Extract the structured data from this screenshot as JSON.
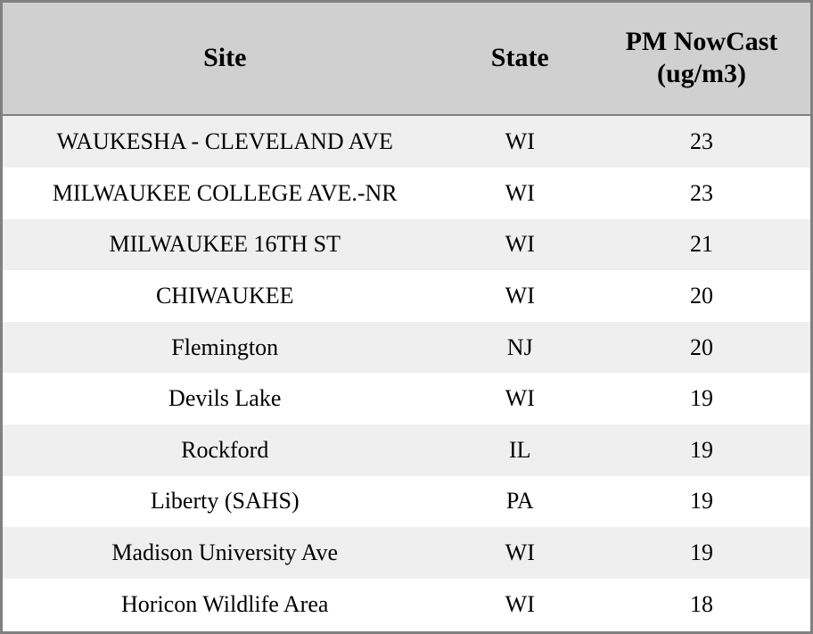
{
  "table": {
    "columns": [
      {
        "label": "Site"
      },
      {
        "label": "State"
      },
      {
        "label": "PM NowCast (ug/m3)"
      }
    ],
    "rows": [
      {
        "site": "WAUKESHA - CLEVELAND AVE",
        "state": "WI",
        "value": "23"
      },
      {
        "site": "MILWAUKEE COLLEGE AVE.-NR",
        "state": "WI",
        "value": "23"
      },
      {
        "site": "MILWAUKEE 16TH ST",
        "state": "WI",
        "value": "21"
      },
      {
        "site": "CHIWAUKEE",
        "state": "WI",
        "value": "20"
      },
      {
        "site": "Flemington",
        "state": "NJ",
        "value": "20"
      },
      {
        "site": "Devils Lake",
        "state": "WI",
        "value": "19"
      },
      {
        "site": "Rockford",
        "state": "IL",
        "value": "19"
      },
      {
        "site": "Liberty (SAHS)",
        "state": "PA",
        "value": "19"
      },
      {
        "site": "Madison University Ave",
        "state": "WI",
        "value": "19"
      },
      {
        "site": "Horicon Wildlife Area",
        "state": "WI",
        "value": "18"
      }
    ],
    "colors": {
      "header_bg": "#d0d0d0",
      "row_alt_bg": "#efefef",
      "row_bg": "#ffffff",
      "border": "#808080",
      "text": "#000000"
    }
  }
}
